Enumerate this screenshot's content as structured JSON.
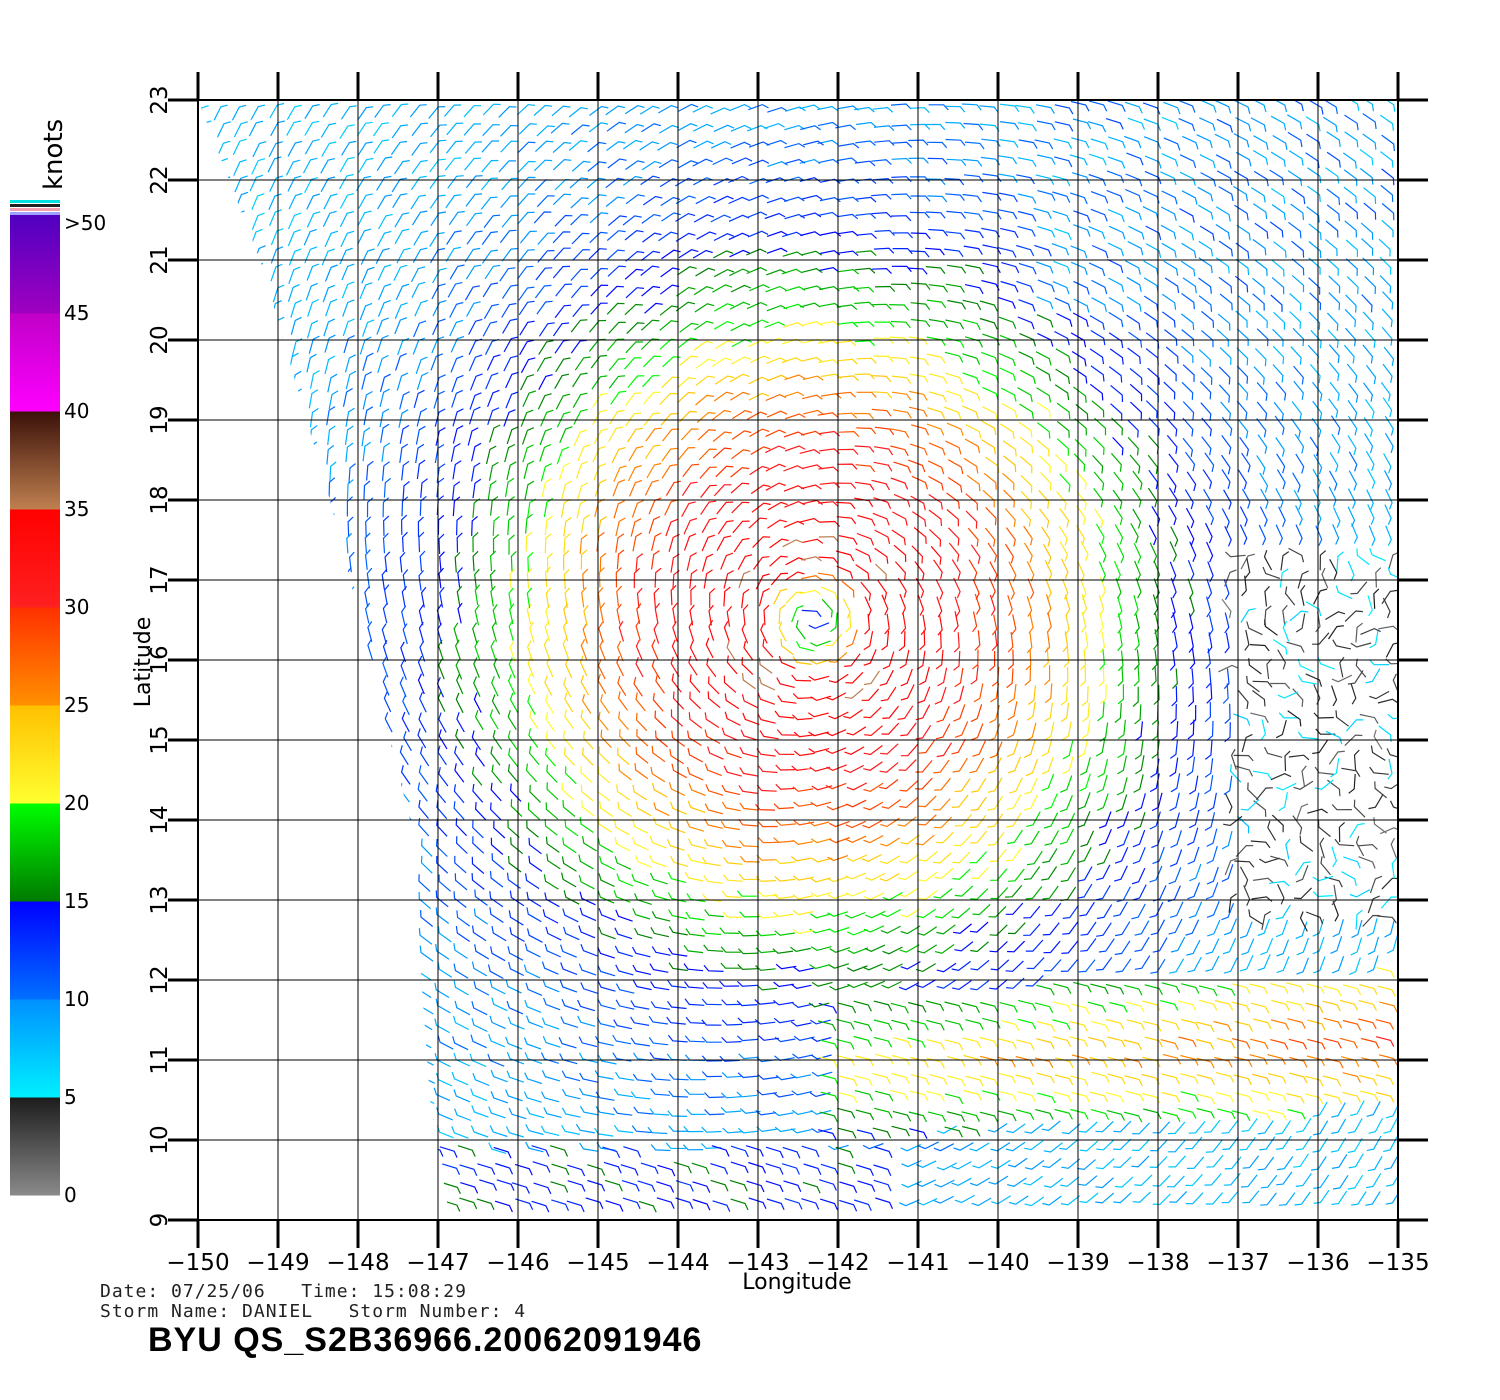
{
  "map": {
    "xlabel": "Longitude",
    "ylabel": "Latitude",
    "lon_ticks": [
      "−150",
      "−149",
      "−148",
      "−147",
      "−146",
      "−145",
      "−144",
      "−143",
      "−142",
      "−141",
      "−140",
      "−139",
      "−138",
      "−137",
      "−136",
      "−135"
    ],
    "lat_ticks": [
      "9",
      "10",
      "11",
      "12",
      "13",
      "14",
      "15",
      "16",
      "17",
      "18",
      "19",
      "20",
      "21",
      "22",
      "23"
    ],
    "lon_range": [
      -150,
      -135
    ],
    "lat_range": [
      9,
      23
    ],
    "storm_center": {
      "lon": -142.3,
      "lat": 16.5
    },
    "swath": "west edge from approx. -150 at lat 23 to -146 at lat 9",
    "grid": true
  },
  "colorbar": {
    "unit": "knots",
    "labels": [
      ">50",
      "45",
      "40",
      "35",
      "30",
      "25",
      "20",
      "15",
      "10",
      "5",
      "0"
    ],
    "bands": [
      {
        "from": 0,
        "to": 5,
        "colors": [
          "#8a8a8a",
          "#1c1c1c"
        ]
      },
      {
        "from": 5,
        "to": 10,
        "colors": [
          "#00f0ff",
          "#0090ff"
        ]
      },
      {
        "from": 10,
        "to": 15,
        "colors": [
          "#0070ff",
          "#0000ff"
        ]
      },
      {
        "from": 15,
        "to": 20,
        "colors": [
          "#007a00",
          "#00ff00"
        ]
      },
      {
        "from": 20,
        "to": 25,
        "colors": [
          "#ffff30",
          "#ffc000"
        ]
      },
      {
        "from": 25,
        "to": 30,
        "colors": [
          "#ff9000",
          "#ff3000"
        ]
      },
      {
        "from": 30,
        "to": 35,
        "colors": [
          "#ff2020",
          "#ff0000"
        ]
      },
      {
        "from": 35,
        "to": 40,
        "colors": [
          "#c08050",
          "#3a1008"
        ]
      },
      {
        "from": 40,
        "to": 45,
        "colors": [
          "#ff00ff",
          "#c000c8"
        ]
      },
      {
        "from": 45,
        "to": 50,
        "colors": [
          "#a000c0",
          "#5000c0"
        ]
      }
    ]
  },
  "meta": {
    "date_line": "Date: 07/25/06   Time: 15:08:29",
    "storm_line": "Storm Name: DANIEL   Storm Number: 4",
    "file_id": "BYU QS_S2B36966.20062091946"
  }
}
